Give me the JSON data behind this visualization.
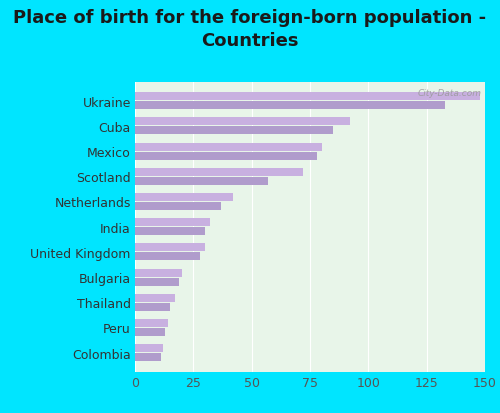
{
  "title": "Place of birth for the foreign-born population -\nCountries",
  "categories": [
    "Ukraine",
    "Cuba",
    "Mexico",
    "Scotland",
    "Netherlands",
    "India",
    "United Kingdom",
    "Bulgaria",
    "Thailand",
    "Peru",
    "Colombia"
  ],
  "values1": [
    148,
    92,
    80,
    72,
    42,
    32,
    30,
    20,
    17,
    14,
    12
  ],
  "values2": [
    133,
    85,
    78,
    57,
    37,
    30,
    28,
    19,
    15,
    13,
    11
  ],
  "bar_color1": "#b09ccc",
  "bar_color2": "#c8b0e0",
  "background_outer": "#00e5ff",
  "background_inner": "#e8f5e9",
  "xlim": [
    0,
    150
  ],
  "xticks": [
    0,
    25,
    50,
    75,
    100,
    125,
    150
  ],
  "watermark": "City-Data.com",
  "title_fontsize": 13,
  "tick_fontsize": 9,
  "label_fontsize": 9
}
